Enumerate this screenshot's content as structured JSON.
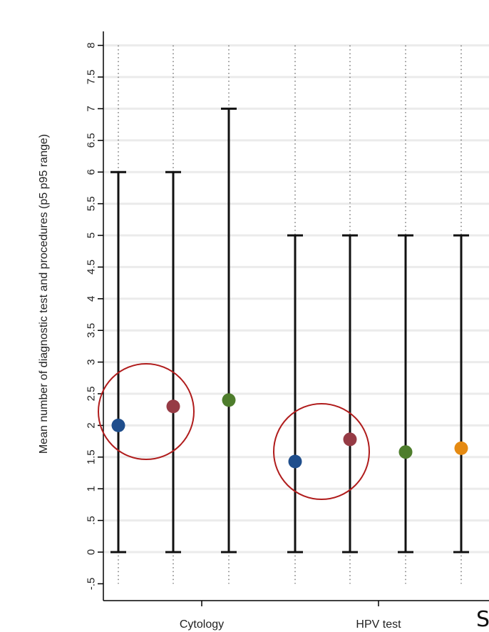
{
  "chart_data": {
    "type": "scatter",
    "ylabel": "Mean number of diagnostic test and procedures (p5 p95 range)",
    "ylim": [
      -0.5,
      8
    ],
    "yticks": [
      "-.5",
      "0",
      ".5",
      "1",
      "1.5",
      "2",
      "2.5",
      "3",
      "3.5",
      "4",
      "4.5",
      "5",
      "5.5",
      "6",
      "6.5",
      "7",
      "7.5",
      "8"
    ],
    "ytick_values": [
      -0.5,
      0,
      0.5,
      1,
      1.5,
      2,
      2.5,
      3,
      3.5,
      4,
      4.5,
      5,
      5.5,
      6,
      6.5,
      7,
      7.5,
      8
    ],
    "grid": true,
    "groups": [
      {
        "label": "Cytology",
        "points": [
          {
            "mean": 2.0,
            "p5": 0,
            "p95": 6,
            "color": "#1f4e8c"
          },
          {
            "mean": 2.3,
            "p5": 0,
            "p95": 6,
            "color": "#963b45"
          },
          {
            "mean": 2.4,
            "p5": 0,
            "p95": 7,
            "color": "#4e7d2c"
          }
        ]
      },
      {
        "label": "HPV test",
        "points": [
          {
            "mean": 1.43,
            "p5": 0,
            "p95": 5,
            "color": "#1f4e8c"
          },
          {
            "mean": 1.78,
            "p5": 0,
            "p95": 5,
            "color": "#963b45"
          },
          {
            "mean": 1.58,
            "p5": 0,
            "p95": 5,
            "color": "#4e7d2c"
          },
          {
            "mean": 1.64,
            "p5": 0,
            "p95": 5,
            "color": "#e58a12"
          }
        ]
      }
    ],
    "highlights_color": "#b01c1c"
  },
  "edge_text": "S"
}
